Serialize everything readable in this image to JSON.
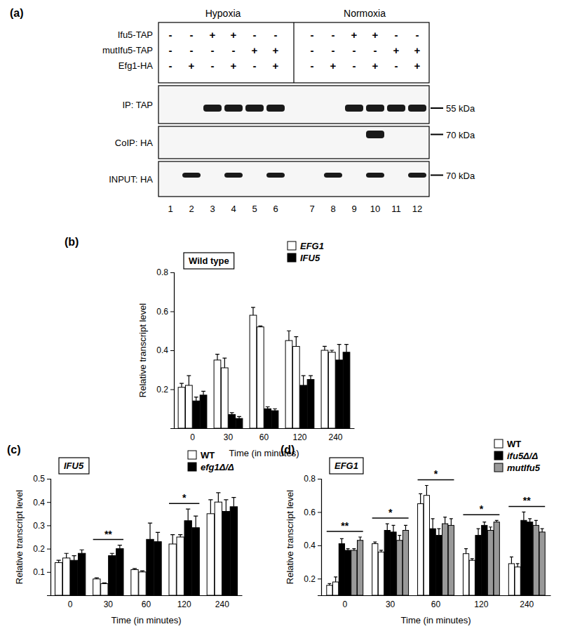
{
  "blot": {
    "panel": "(a)",
    "conditions": [
      "Hypoxia",
      "Normoxia"
    ],
    "rows": [
      {
        "label": "Ifu5-TAP",
        "signs": [
          "-",
          "-",
          "+",
          "+",
          "-",
          "-",
          "-",
          "-",
          "+",
          "+",
          "-",
          "-"
        ]
      },
      {
        "label": "mutIfu5-TAP",
        "signs": [
          "-",
          "-",
          "-",
          "-",
          "+",
          "+",
          "-",
          "-",
          "-",
          "-",
          "+",
          "+"
        ]
      },
      {
        "label": "Efg1-HA",
        "signs": [
          "-",
          "+",
          "-",
          "+",
          "-",
          "+",
          "-",
          "+",
          "-",
          "+",
          "-",
          "+"
        ]
      }
    ],
    "blots": [
      {
        "label": "IP: TAP",
        "size": "55 kDa",
        "bands": [
          false,
          false,
          true,
          true,
          true,
          true,
          false,
          false,
          true,
          true,
          true,
          true
        ]
      },
      {
        "label": "CoIP: HA",
        "size": "70 kDa",
        "bands": [
          false,
          false,
          false,
          false,
          false,
          false,
          false,
          false,
          false,
          true,
          false,
          false
        ]
      },
      {
        "label": "INPUT: HA",
        "size": "70 kDa",
        "bands": [
          false,
          true,
          false,
          true,
          false,
          true,
          false,
          true,
          false,
          true,
          false,
          true
        ]
      }
    ],
    "lanes": [
      1,
      2,
      3,
      4,
      5,
      6,
      7,
      8,
      9,
      10,
      11,
      12
    ]
  },
  "chart_data": [
    {
      "type": "bar",
      "panel": "(b)",
      "title": "Wild type",
      "x_label": "Time (in minutes)",
      "y_label": "Relative transcript level",
      "categories": [
        "0",
        "30",
        "60",
        "120",
        "240"
      ],
      "series": [
        {
          "name": "EFG1",
          "color": "#ffffff",
          "values": [
            [
              0.21,
              0.22
            ],
            [
              0.35,
              0.31
            ],
            [
              0.58,
              0.52
            ],
            [
              0.45,
              0.42
            ],
            [
              0.4,
              0.39
            ]
          ],
          "errors": [
            [
              0.02,
              0.05
            ],
            [
              0.03,
              0.05
            ],
            [
              0.04,
              0.005
            ],
            [
              0.05,
              0.05
            ],
            [
              0.02,
              0.01
            ]
          ]
        },
        {
          "name": "IFU5",
          "color": "#000000",
          "values": [
            [
              0.14,
              0.17
            ],
            [
              0.07,
              0.05
            ],
            [
              0.1,
              0.09
            ],
            [
              0.22,
              0.25
            ],
            [
              0.35,
              0.39
            ]
          ],
          "errors": [
            [
              0.02,
              0.02
            ],
            [
              0.01,
              0.01
            ],
            [
              0.01,
              0.01
            ],
            [
              0.05,
              0.02
            ],
            [
              0.08,
              0.04
            ]
          ]
        }
      ],
      "ylim": [
        0,
        0.8
      ],
      "yticks": [
        0.2,
        0.4,
        0.6,
        0.8
      ],
      "legend": "top-right"
    },
    {
      "type": "bar",
      "panel": "(c)",
      "title": "IFU5",
      "x_label": "Time (in minutes)",
      "y_label": "Relative transcript level",
      "categories": [
        "0",
        "30",
        "60",
        "120",
        "240"
      ],
      "series": [
        {
          "name": "WT",
          "color": "#ffffff",
          "values": [
            [
              0.14,
              0.16
            ],
            [
              0.07,
              0.05
            ],
            [
              0.11,
              0.1
            ],
            [
              0.22,
              0.25
            ],
            [
              0.35,
              0.4
            ]
          ],
          "errors": [
            [
              0.01,
              0.02
            ],
            [
              0.005,
              0.003
            ],
            [
              0.005,
              0.005
            ],
            [
              0.04,
              0.01
            ],
            [
              0.06,
              0.04
            ]
          ]
        },
        {
          "name": "efg1Δ/Δ",
          "color": "#000000",
          "values": [
            [
              0.15,
              0.18
            ],
            [
              0.17,
              0.2
            ],
            [
              0.24,
              0.23
            ],
            [
              0.32,
              0.29
            ],
            [
              0.36,
              0.38
            ]
          ],
          "errors": [
            [
              0.02,
              0.015
            ],
            [
              0.01,
              0.015
            ],
            [
              0.07,
              0.04
            ],
            [
              0.05,
              0.05
            ],
            [
              0.05,
              0.04
            ]
          ]
        }
      ],
      "ylim": [
        0,
        0.5
      ],
      "yticks": [
        0.1,
        0.2,
        0.3,
        0.4,
        0.5
      ],
      "legend": "top-right",
      "annotations": [
        {
          "text": "**",
          "category": 1
        },
        {
          "text": "*",
          "category": 3
        }
      ]
    },
    {
      "type": "bar",
      "panel": "(d)",
      "title": "EFG1",
      "x_label": "Time (in minutes)",
      "y_label": "Relative transcript level",
      "categories": [
        "0",
        "30",
        "60",
        "120",
        "240"
      ],
      "series": [
        {
          "name": "WT",
          "color": "#ffffff",
          "values": [
            [
              0.16,
              0.18
            ],
            [
              0.41,
              0.36
            ],
            [
              0.65,
              0.7
            ],
            [
              0.35,
              0.31
            ],
            [
              0.29,
              0.27
            ]
          ],
          "errors": [
            [
              0.01,
              0.03
            ],
            [
              0.01,
              0.01
            ],
            [
              0.06,
              0.06
            ],
            [
              0.03,
              0.01
            ],
            [
              0.04,
              0.02
            ]
          ]
        },
        {
          "name": "ifu5Δ/Δ",
          "color": "#000000",
          "values": [
            [
              0.41,
              0.37
            ],
            [
              0.49,
              0.48
            ],
            [
              0.5,
              0.46
            ],
            [
              0.46,
              0.52
            ],
            [
              0.55,
              0.54
            ]
          ],
          "errors": [
            [
              0.03,
              0.01
            ],
            [
              0.04,
              0.04
            ],
            [
              0.06,
              0.04
            ],
            [
              0.04,
              0.02
            ],
            [
              0.05,
              0.02
            ]
          ]
        },
        {
          "name": "mutIfu5",
          "color": "#999999",
          "values": [
            [
              0.37,
              0.43
            ],
            [
              0.43,
              0.49
            ],
            [
              0.53,
              0.52
            ],
            [
              0.49,
              0.54
            ],
            [
              0.52,
              0.48
            ]
          ],
          "errors": [
            [
              0.01,
              0.02
            ],
            [
              0.03,
              0.03
            ],
            [
              0.04,
              0.04
            ],
            [
              0.02,
              0.01
            ],
            [
              0.03,
              0.02
            ]
          ]
        }
      ],
      "ylim": [
        0.1,
        0.8
      ],
      "yticks": [
        0.2,
        0.4,
        0.6,
        0.8
      ],
      "legend": "top-right",
      "annotations": [
        {
          "text": "**",
          "category": 0
        },
        {
          "text": "*",
          "category": 1
        },
        {
          "text": "*",
          "category": 2
        },
        {
          "text": "*",
          "category": 3
        },
        {
          "text": "**",
          "category": 4
        }
      ]
    }
  ]
}
